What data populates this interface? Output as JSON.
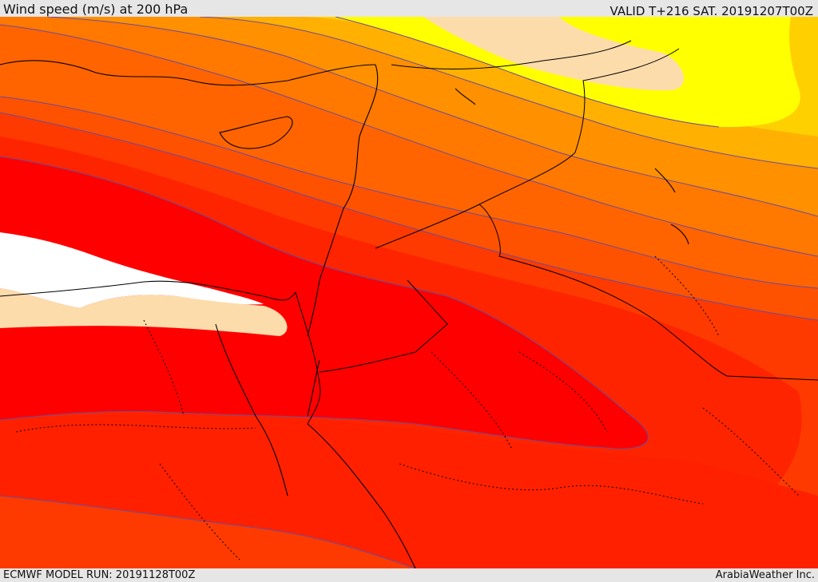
{
  "header": {
    "title": "Wind speed (m/s) at 200 hPa",
    "valid_time": "VALID T+216 SAT. 20191207T00Z"
  },
  "footer": {
    "model_run": "ECMWF MODEL RUN: 20191128T00Z",
    "credit": "ArabiaWeather Inc."
  },
  "map": {
    "variable": "wind speed at 200 hPa",
    "region": "Eastern Mediterranean / Levant / Egypt / Arabia",
    "shading_colors": [
      "#ffff00",
      "#ffd000",
      "#ffb400",
      "#ff9000",
      "#ff7000",
      "#ff5000",
      "#ff3a00",
      "#ff2000",
      "#ff0000",
      "#ffffff",
      "#fddcab"
    ],
    "contour_color": "#6b4b9a",
    "border_color": "#000000"
  }
}
